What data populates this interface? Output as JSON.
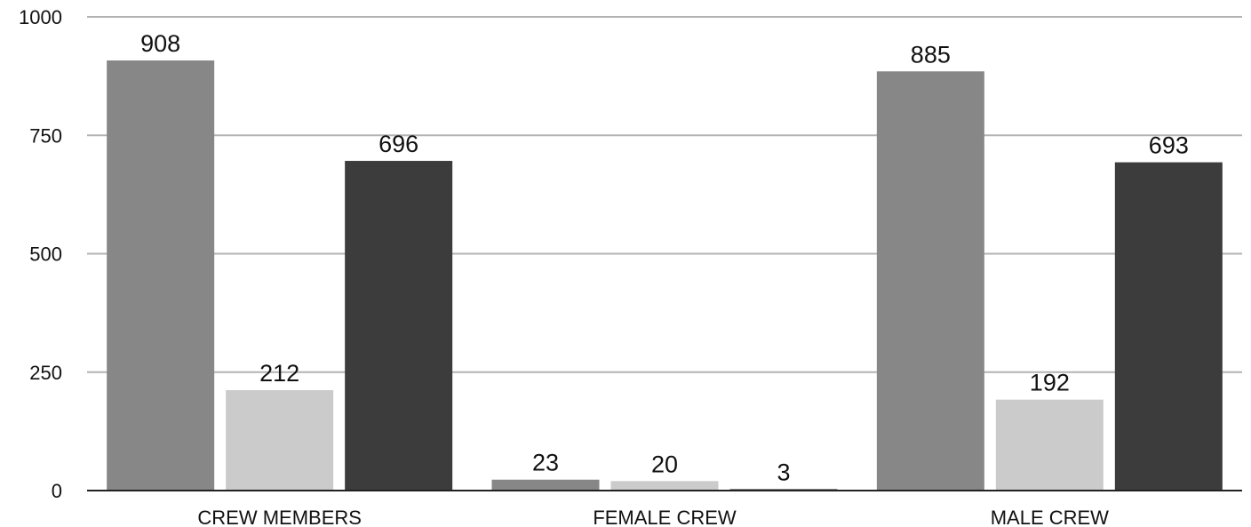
{
  "chart_data": {
    "type": "bar",
    "title": "",
    "xlabel": "",
    "ylabel": "",
    "categories": [
      "CREW MEMBERS",
      "FEMALE CREW",
      "MALE CREW"
    ],
    "series": [
      {
        "values": [
          908,
          23,
          885
        ],
        "color": "#878787"
      },
      {
        "values": [
          212,
          20,
          192
        ],
        "color": "#cbcbcb"
      },
      {
        "values": [
          696,
          3,
          693
        ],
        "color": "#3c3c3c"
      }
    ],
    "ylim": [
      0,
      1000
    ],
    "yticks": [
      0,
      250,
      500,
      750,
      1000
    ],
    "grid": true,
    "legend": "none",
    "gridline_color": "#b3b3b3",
    "axis_color": "#222222"
  }
}
